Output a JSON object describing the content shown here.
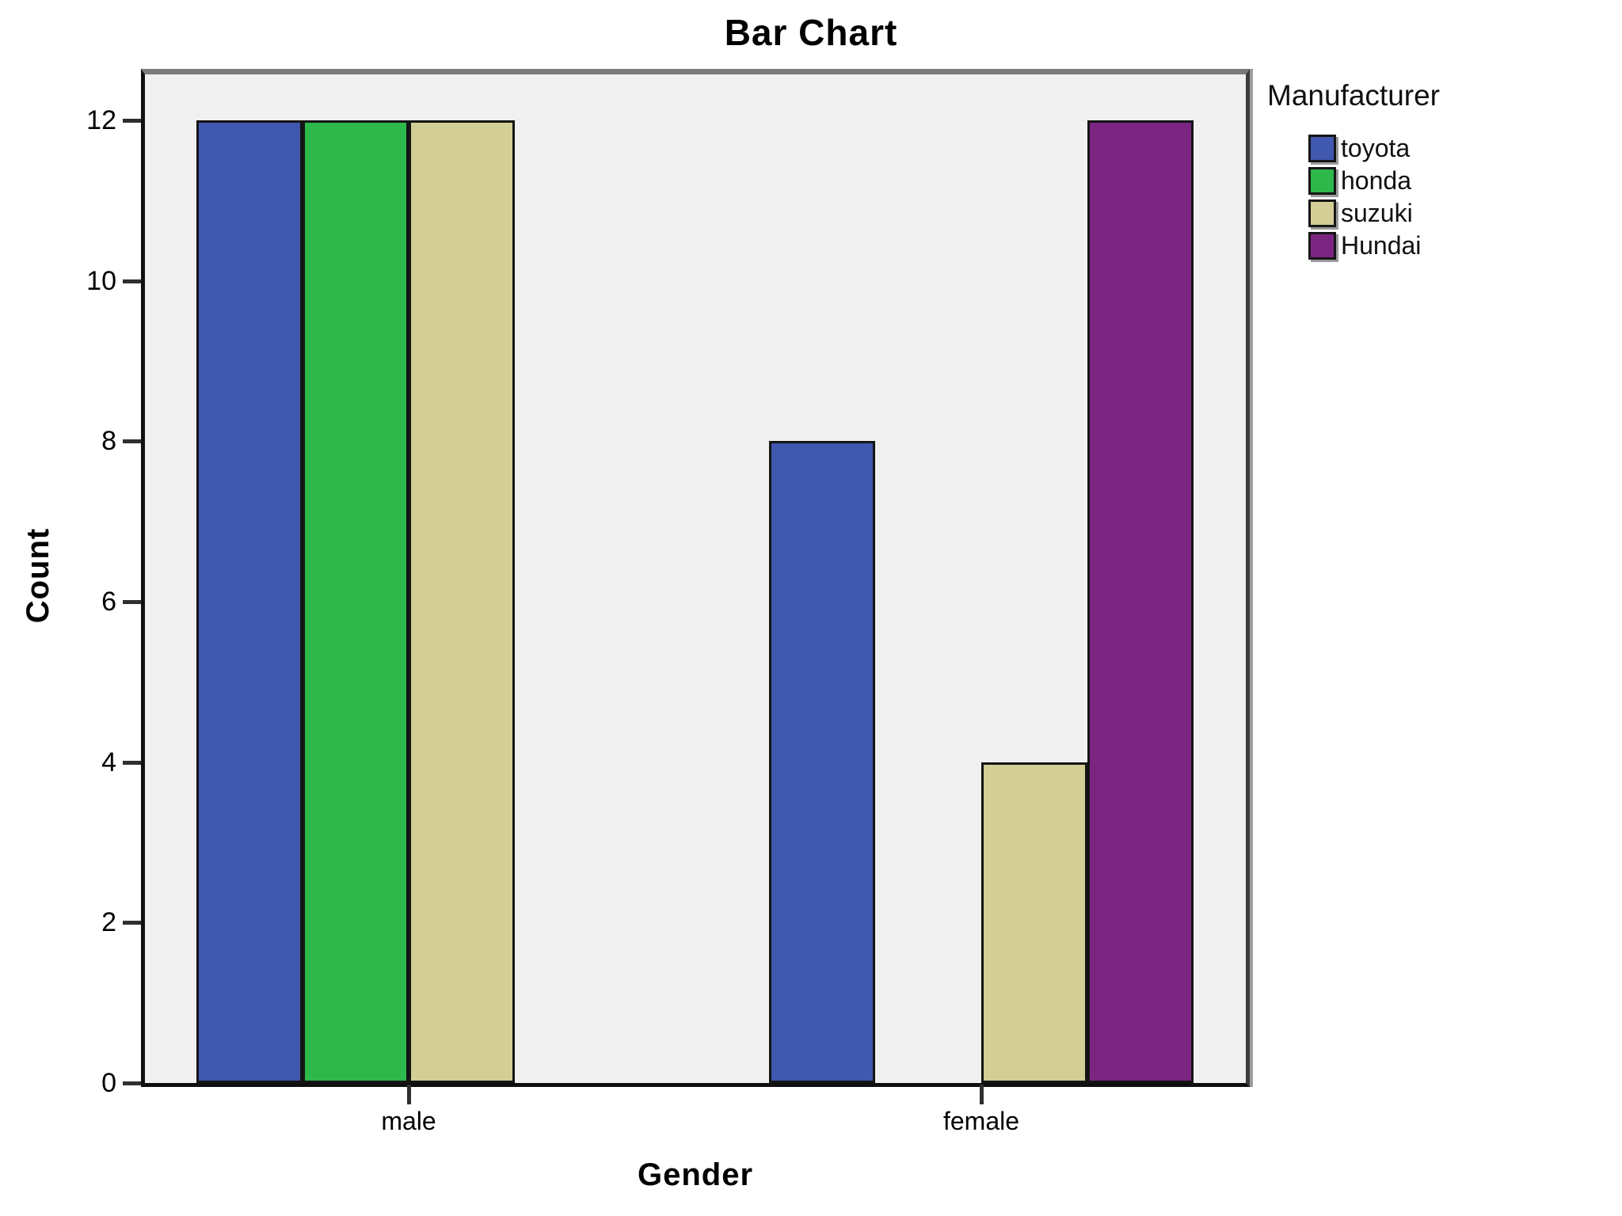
{
  "figure": {
    "title": "Bar Chart",
    "y_axis_label": "Count",
    "x_axis_label": "Gender",
    "legend_title": "Manufacturer"
  },
  "chart_data": {
    "type": "bar",
    "title": "Bar Chart",
    "xlabel": "Gender",
    "ylabel": "Count",
    "categories": [
      "male",
      "female"
    ],
    "series": [
      {
        "name": "toyota",
        "color": "#4058AD",
        "values": [
          12,
          8
        ]
      },
      {
        "name": "honda",
        "color": "#2EB74A",
        "values": [
          12,
          0
        ]
      },
      {
        "name": "suzuki",
        "color": "#D3CD96",
        "values": [
          12,
          4
        ]
      },
      {
        "name": "Hundai",
        "color": "#7B2583",
        "values": [
          0,
          12
        ]
      }
    ],
    "ylim": [
      0,
      12
    ],
    "yticks": [
      0,
      2,
      4,
      6,
      8,
      10,
      12
    ],
    "xticklabels": [
      "male",
      "female"
    ],
    "legend": {
      "title": "Manufacturer",
      "position": "right",
      "entries": [
        "toyota",
        "honda",
        "suzuki",
        "Hundai"
      ]
    },
    "grid": false,
    "plot_background": "#F0F0F0",
    "bar_outline": "#141414"
  }
}
